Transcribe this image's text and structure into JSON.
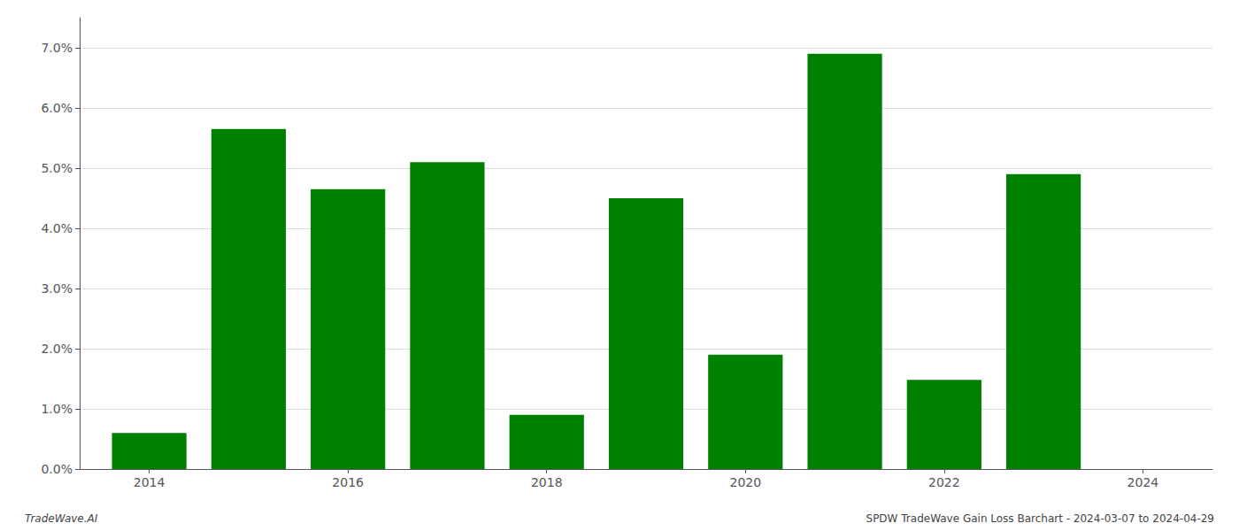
{
  "chart_data": {
    "type": "bar",
    "x": [
      2014,
      2015,
      2016,
      2017,
      2018,
      2019,
      2020,
      2021,
      2022,
      2023
    ],
    "values": [
      0.006,
      0.0565,
      0.0465,
      0.051,
      0.009,
      0.045,
      0.019,
      0.069,
      0.0148,
      0.049
    ],
    "color": "#008000",
    "xlim": [
      2013.3,
      2024.7
    ],
    "xticks": [
      2014,
      2016,
      2018,
      2020,
      2022,
      2024
    ],
    "ylim": [
      0,
      0.075
    ],
    "yticks": [
      {
        "value": 0.0,
        "label": "0.0%"
      },
      {
        "value": 0.01,
        "label": "1.0%"
      },
      {
        "value": 0.02,
        "label": "2.0%"
      },
      {
        "value": 0.03,
        "label": "3.0%"
      },
      {
        "value": 0.04,
        "label": "4.0%"
      },
      {
        "value": 0.05,
        "label": "5.0%"
      },
      {
        "value": 0.06,
        "label": "6.0%"
      },
      {
        "value": 0.07,
        "label": "7.0%"
      }
    ],
    "grid": true,
    "annotations": [
      "TradeWave.AI",
      "SPDW TradeWave Gain Loss Barchart - 2024-03-07 to 2024-04-29"
    ]
  }
}
